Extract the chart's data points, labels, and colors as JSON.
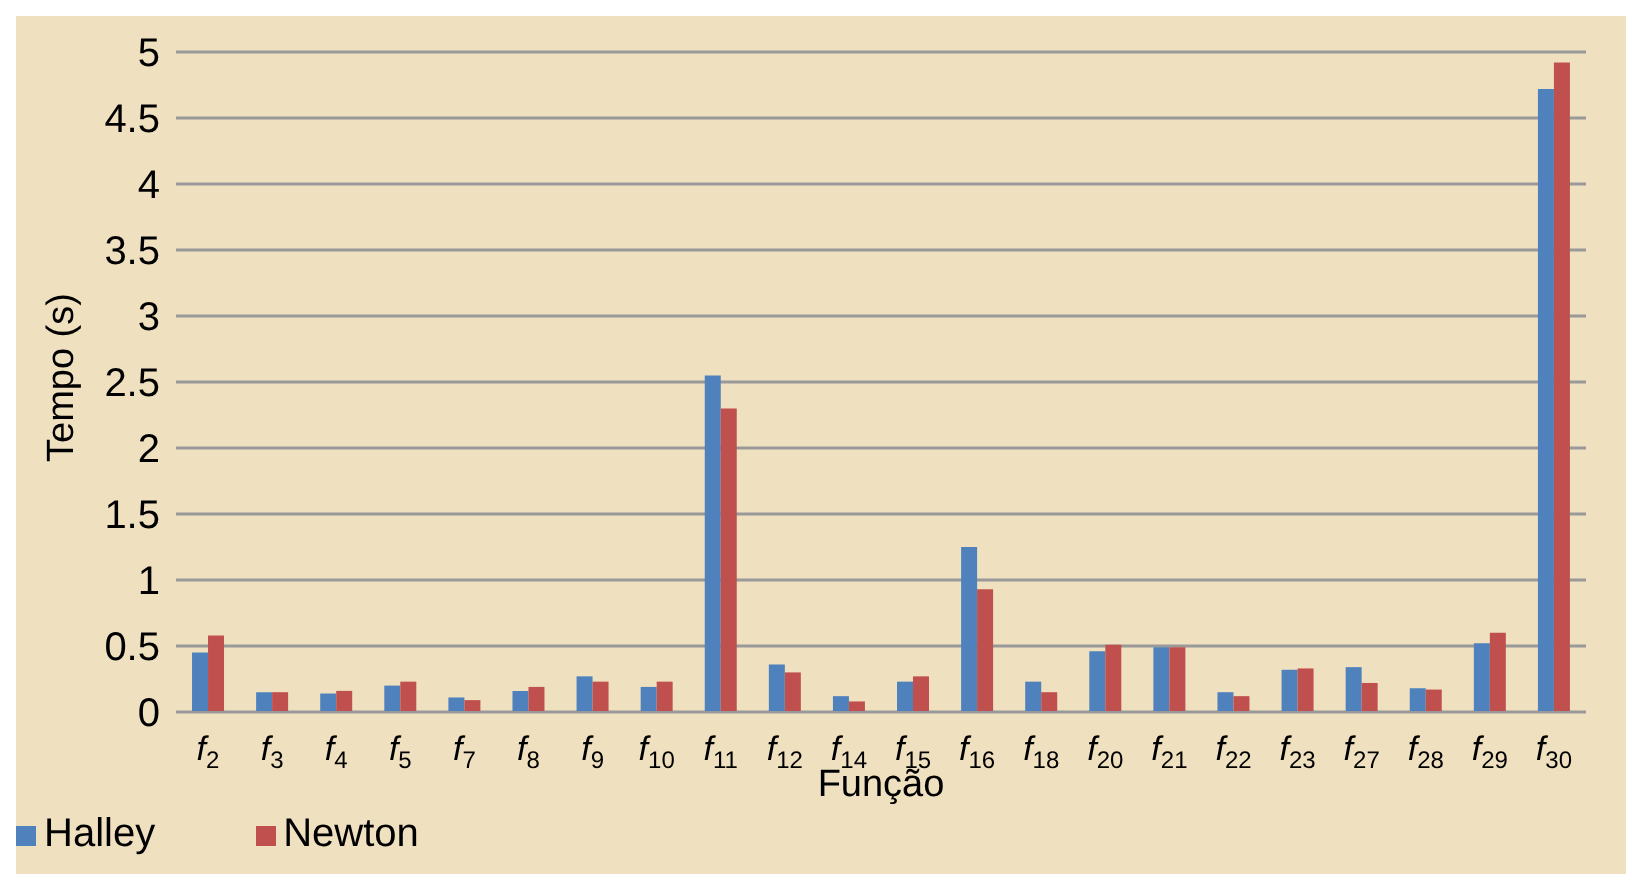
{
  "chart_data": {
    "type": "bar",
    "xlabel": "Função",
    "ylabel": "Tempo (s)",
    "categories": [
      "f$_{2}$",
      "f$_{3}$",
      "f$_{4}$",
      "f$_{5}$",
      "f$_{7}$",
      "f$_{8}$",
      "f$_{9}$",
      "f$_{10}$",
      "f$_{11}$",
      "f$_{12}$",
      "f$_{14}$",
      "f$_{15}$",
      "f$_{16}$",
      "f$_{18}$",
      "f$_{20}$",
      "f$_{21}$",
      "f$_{22}$",
      "f$_{23}$",
      "f$_{27}$",
      "f$_{28}$",
      "f$_{29}$",
      "f$_{30}$"
    ],
    "series": [
      {
        "name": "Halley",
        "color": "#4f81bd",
        "values": [
          0.45,
          0.15,
          0.14,
          0.2,
          0.11,
          0.16,
          0.27,
          0.19,
          2.55,
          0.36,
          0.12,
          0.23,
          1.25,
          0.23,
          0.46,
          0.49,
          0.15,
          0.32,
          0.34,
          0.18,
          0.52,
          4.72
        ]
      },
      {
        "name": "Newton",
        "color": "#c0504d",
        "values": [
          0.58,
          0.15,
          0.16,
          0.23,
          0.09,
          0.19,
          0.23,
          0.23,
          2.3,
          0.3,
          0.08,
          0.27,
          0.93,
          0.15,
          0.51,
          0.49,
          0.12,
          0.33,
          0.22,
          0.17,
          0.6,
          4.92
        ]
      }
    ],
    "ylim": [
      0,
      5
    ],
    "yticks": [
      0,
      0.5,
      1,
      1.5,
      2,
      2.5,
      3,
      3.5,
      4,
      4.5,
      5
    ],
    "grid": "y",
    "legend": "bottom left"
  }
}
